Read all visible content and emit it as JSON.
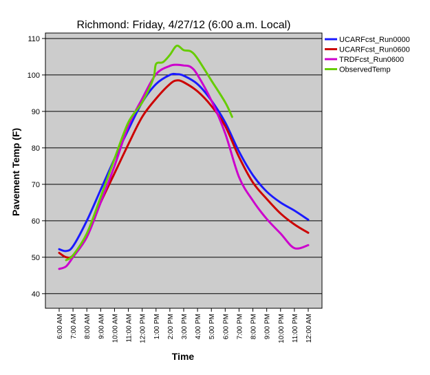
{
  "chart_data": {
    "type": "line",
    "title": "Richmond: Friday, 4/27/12 (6:00 a.m. Local)",
    "xlabel": "Time",
    "ylabel": "Pavement Temp (F)",
    "ylim": [
      36,
      111.5
    ],
    "yticks": [
      40,
      50,
      60,
      70,
      80,
      90,
      100,
      110
    ],
    "grid": "horizontal",
    "legend_position": "top-right",
    "categories": [
      "6:00 AM",
      "7:00 AM",
      "8:00 AM",
      "9:00 AM",
      "10:00 AM",
      "11:00 AM",
      "12:00 PM",
      "1:00 PM",
      "2:00 PM",
      "3:00 PM",
      "4:00 PM",
      "5:00 PM",
      "6:00 PM",
      "7:00 PM",
      "8:00 PM",
      "9:00 PM",
      "10:00 PM",
      "11:00 PM",
      "12:00 AM"
    ],
    "series": [
      {
        "name": "UCARFcst_Run0000",
        "color": "#1a1aff",
        "points": [
          [
            0,
            52.2
          ],
          [
            0.5,
            51.7
          ],
          [
            1,
            53
          ],
          [
            2,
            60
          ],
          [
            3,
            68.5
          ],
          [
            4,
            77
          ],
          [
            5,
            85
          ],
          [
            6,
            92.5
          ],
          [
            7,
            97.5
          ],
          [
            8,
            100
          ],
          [
            8.5,
            100.2
          ],
          [
            9,
            99.8
          ],
          [
            10,
            97.5
          ],
          [
            11,
            93
          ],
          [
            12,
            87
          ],
          [
            13,
            79
          ],
          [
            14,
            72.5
          ],
          [
            15,
            68
          ],
          [
            16,
            65
          ],
          [
            17,
            62.8
          ],
          [
            18,
            60.3
          ]
        ]
      },
      {
        "name": "UCARFcst_Run0600",
        "color": "#cc0000",
        "points": [
          [
            0,
            51.2
          ],
          [
            0.5,
            50
          ],
          [
            1,
            50.5
          ],
          [
            2,
            56
          ],
          [
            3,
            65
          ],
          [
            4,
            73
          ],
          [
            5,
            81
          ],
          [
            6,
            88.5
          ],
          [
            7,
            93.5
          ],
          [
            8,
            97.5
          ],
          [
            8.5,
            98.5
          ],
          [
            9,
            98
          ],
          [
            10,
            95.5
          ],
          [
            11,
            91.5
          ],
          [
            12,
            86
          ],
          [
            13,
            77.5
          ],
          [
            14,
            70.5
          ],
          [
            15,
            66
          ],
          [
            16,
            62
          ],
          [
            17,
            59
          ],
          [
            18,
            56.7
          ]
        ]
      },
      {
        "name": "TRDFcst_Run0600",
        "color": "#cc00cc",
        "points": [
          [
            0,
            46.8
          ],
          [
            0.5,
            47.5
          ],
          [
            1,
            50
          ],
          [
            2,
            55.5
          ],
          [
            3,
            65
          ],
          [
            4,
            75
          ],
          [
            5,
            86
          ],
          [
            6,
            93.5
          ],
          [
            7,
            100.2
          ],
          [
            8,
            102.5
          ],
          [
            8.5,
            102.8
          ],
          [
            9,
            102.6
          ],
          [
            9.5,
            102.2
          ],
          [
            10,
            100
          ],
          [
            11,
            93
          ],
          [
            12,
            84
          ],
          [
            13,
            72
          ],
          [
            14,
            65.5
          ],
          [
            15,
            60.5
          ],
          [
            16,
            56.5
          ],
          [
            17,
            52.5
          ],
          [
            18,
            53.3
          ]
        ]
      },
      {
        "name": "ObservedTemp",
        "color": "#66cc00",
        "points": [
          [
            0.5,
            49.2
          ],
          [
            1,
            50.5
          ],
          [
            2,
            56.5
          ],
          [
            3,
            66.5
          ],
          [
            4,
            77
          ],
          [
            5,
            87
          ],
          [
            6,
            92.5
          ],
          [
            6.8,
            99
          ],
          [
            7,
            103
          ],
          [
            7.5,
            103.5
          ],
          [
            8,
            105.5
          ],
          [
            8.5,
            108
          ],
          [
            9,
            106.8
          ],
          [
            9.5,
            106.5
          ],
          [
            10,
            104.5
          ],
          [
            11,
            98.5
          ],
          [
            12,
            92.5
          ],
          [
            12.5,
            88.5
          ]
        ]
      }
    ]
  }
}
